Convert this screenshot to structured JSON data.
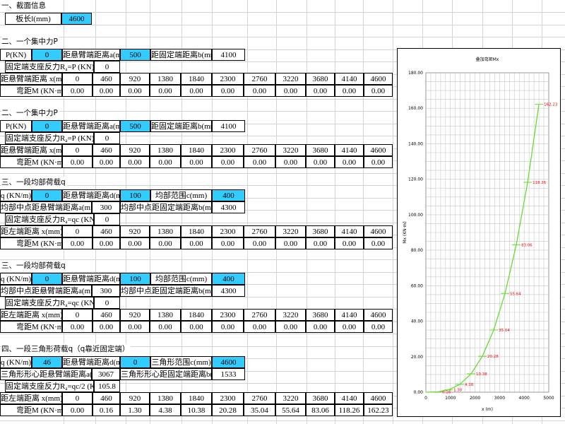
{
  "sec0": {
    "title": "一、截面信息",
    "board_label": "板长l(mm)",
    "board_value": "4600"
  },
  "sec1": {
    "title": "二、一个集中力P",
    "p_label": "P(KN)",
    "p_value": "0",
    "a_label": "距悬臂端距离a(mm)",
    "a_value": "500",
    "b_label": "距固定端距离b(mm)",
    "b_value": "4100",
    "r_label": "固定端支座反力R",
    "r_sub": "a",
    "r_rest": "=P (KN)",
    "r_value": "0",
    "x_label": "距悬臂端距离 x(mm)",
    "m_label": "弯距M (KN·m)",
    "x_values": [
      "0",
      "460",
      "920",
      "1380",
      "1840",
      "2300",
      "2760",
      "3220",
      "3680",
      "4140",
      "4600"
    ],
    "m_values": [
      "0.00",
      "0.00",
      "0.00",
      "0.00",
      "0.00",
      "0.00",
      "0.00",
      "0.00",
      "0.00",
      "0.00",
      "0.00"
    ]
  },
  "sec2": {
    "title": "二、一个集中力P",
    "p_label": "P(KN)",
    "p_value": "0",
    "a_label": "距悬臂端距离a(mm)",
    "a_value": "500",
    "b_label": "距固定端距离b(mm)",
    "b_value": "4100",
    "r_label": "固定端支座反力R",
    "r_sub": "a",
    "r_rest": "=P (KN)",
    "r_value": "0",
    "x_label": "距悬臂端距离 x(mm)",
    "m_label": "弯距M (KN·m)",
    "x_values": [
      "0",
      "460",
      "920",
      "1380",
      "1840",
      "2300",
      "2760",
      "3220",
      "3680",
      "4140",
      "4600"
    ],
    "m_values": [
      "0.00",
      "0.00",
      "0.00",
      "0.00",
      "0.00",
      "0.00",
      "0.00",
      "0.00",
      "0.00",
      "0.00",
      "0.00"
    ]
  },
  "sec3": {
    "title": "三、一段均部荷载q",
    "q_label": "q (KN/m)",
    "q_value": "0",
    "d_label": "距悬臂端距离d(mm)",
    "d_value": "100",
    "c_label": "均部范围c(mm)",
    "c_value": "400",
    "a_label": "均部中点距悬臂端距离a(mm)",
    "a_value": "300",
    "b_label": "均部中点距固定端距离b(mm)",
    "b_value": "4300",
    "r_label": "固定端支座反力R",
    "r_sub": "a",
    "r_rest": "=qc (KN)",
    "r_value": "0",
    "x_label": "距左端距离 x(mm)",
    "m_label": "弯距M (KN·m)",
    "x_values": [
      "0",
      "460",
      "920",
      "1380",
      "1840",
      "2300",
      "2760",
      "3220",
      "3680",
      "4140",
      "4600"
    ],
    "m_values": [
      "0.00",
      "0.00",
      "0.00",
      "0.00",
      "0.00",
      "0.00",
      "0.00",
      "0.00",
      "0.00",
      "0.00",
      "0.00"
    ]
  },
  "sec4": {
    "title": "三、一段均部荷载q",
    "q_label": "q (KN/m)",
    "q_value": "0",
    "d_label": "距悬臂端距离d(mm)",
    "d_value": "100",
    "c_label": "均部范围c(mm)",
    "c_value": "400",
    "a_label": "均部中点距悬臂端距离a(mm)",
    "a_value": "300",
    "b_label": "均部中点距固定端距离b(mm)",
    "b_value": "4300",
    "r_label": "固定端支座反力R",
    "r_sub": "a",
    "r_rest": "=qc (KN)",
    "r_value": "0",
    "x_label": "距左端距离 x(mm)",
    "m_label": "弯距M (KN·m)",
    "x_values": [
      "0",
      "460",
      "920",
      "1380",
      "1840",
      "2300",
      "2760",
      "3220",
      "3680",
      "4140",
      "4600"
    ],
    "m_values": [
      "0.00",
      "0.00",
      "0.00",
      "0.00",
      "0.00",
      "0.00",
      "0.00",
      "0.00",
      "0.00",
      "0.00",
      "0.00"
    ]
  },
  "sec5": {
    "title": "四、一段三角形荷载q（q靠近固定端）",
    "q_label": "q (KN/m)",
    "q_value": "46",
    "d_label": "距悬臂端距离d(mm)",
    "d_value": "0",
    "c_label": "三角形范围c(mm)",
    "c_value": "4600",
    "a_label": "三角形形心距悬臂端距离a(mm)",
    "a_value": "3067",
    "b_label": "三角形形心距固定端距离b(mm)",
    "b_value": "1533",
    "r_label": "固定端支座反力R",
    "r_sub": "a",
    "r_rest": "=qc/2 (KN)",
    "r_value": "105.8",
    "x_label": "距左端距离 x(mm)",
    "m_label": "弯距M (KN·m)",
    "x_values": [
      "0",
      "460",
      "920",
      "1380",
      "1840",
      "2300",
      "2760",
      "3220",
      "3680",
      "4140",
      "4600"
    ],
    "m_values": [
      "0.00",
      "0.16",
      "1.30",
      "4.38",
      "10.38",
      "20.28",
      "35.04",
      "55.64",
      "83.06",
      "118.26",
      "162.23"
    ]
  },
  "chart_data": {
    "type": "line",
    "title": "叠加弯矩Mx",
    "xlabel": "x (m)",
    "ylabel": "Mx (KN·m)",
    "xlim": [
      0,
      5000
    ],
    "ylim": [
      0,
      180
    ],
    "x_ticks": [
      "0",
      "1000",
      "2000",
      "3000",
      "4000",
      "5000"
    ],
    "y_ticks": [
      "0.00",
      "20.00",
      "40.00",
      "60.00",
      "80.00",
      "100.00",
      "120.00",
      "140.00",
      "160.00",
      "180.00"
    ],
    "grid": true,
    "line_color": "#66dd33",
    "label_color": "#ff0000",
    "series": [
      {
        "x": [
          0,
          460,
          920,
          1380,
          1840,
          2300,
          2760,
          3220,
          3680,
          4140,
          4600
        ],
        "y": [
          0.0,
          0.16,
          1.3,
          4.38,
          10.38,
          20.28,
          35.04,
          55.64,
          83.06,
          118.26,
          162.23
        ],
        "labels": [
          "0.00",
          "0.16",
          "1.30",
          "4.38",
          "10.38",
          "20.28",
          "35.04",
          "55.64",
          "83.06",
          "118.26",
          "162.23"
        ]
      }
    ]
  }
}
